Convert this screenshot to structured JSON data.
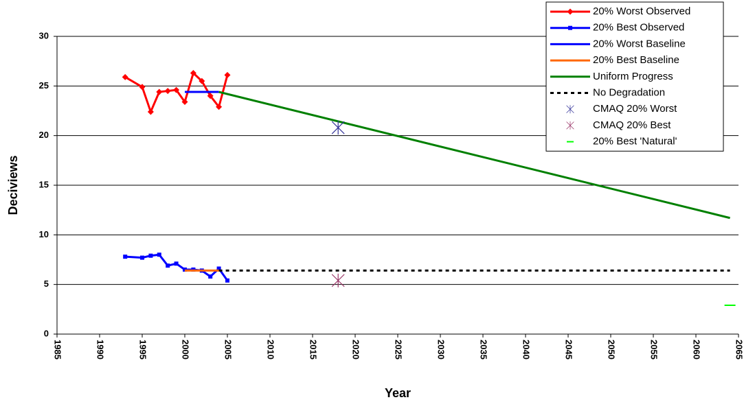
{
  "chart_data": {
    "type": "line",
    "x_label": "Year",
    "y_label": "Deciviews",
    "xlim": [
      1985,
      2065
    ],
    "xticks": [
      1985,
      1990,
      1995,
      2000,
      2005,
      2010,
      2015,
      2020,
      2025,
      2030,
      2035,
      2040,
      2045,
      2050,
      2055,
      2060,
      2065
    ],
    "ylim": [
      0,
      30
    ],
    "yticks": [
      0,
      5,
      10,
      15,
      20,
      25,
      30
    ],
    "grid": true,
    "legend": "top-right",
    "series": [
      {
        "name": "20% Worst Observed",
        "color": "#ff0000",
        "line": "solid",
        "marker": "diamond",
        "x": [
          1993,
          1995,
          1996,
          1997,
          1998,
          1999,
          2000,
          2001,
          2002,
          2003,
          2004,
          2005
        ],
        "values": [
          25.9,
          24.9,
          22.4,
          24.4,
          24.5,
          24.6,
          23.4,
          26.3,
          25.5,
          24.0,
          22.9,
          26.1
        ]
      },
      {
        "name": "20% Best Observed",
        "color": "#0000ff",
        "line": "solid",
        "marker": "square",
        "x": [
          1993,
          1995,
          1996,
          1997,
          1998,
          1999,
          2000,
          2001,
          2002,
          2003,
          2004,
          2005
        ],
        "values": [
          7.8,
          7.7,
          7.9,
          8.0,
          6.9,
          7.1,
          6.5,
          6.5,
          6.4,
          5.8,
          6.6,
          5.4
        ]
      },
      {
        "name": "20% Worst Baseline",
        "color": "#0000ff",
        "line": "solid",
        "marker": "none",
        "x": [
          2000,
          2004
        ],
        "values": [
          24.4,
          24.4
        ]
      },
      {
        "name": "20% Best Baseline",
        "color": "#ff6600",
        "line": "solid",
        "marker": "none",
        "x": [
          2000,
          2004
        ],
        "values": [
          6.4,
          6.4
        ]
      },
      {
        "name": "Uniform Progress",
        "color": "#008000",
        "line": "solid",
        "marker": "none",
        "x": [
          2004,
          2064
        ],
        "values": [
          24.4,
          11.7
        ]
      },
      {
        "name": "No Degradation",
        "color": "#000000",
        "line": "dashed",
        "marker": "none",
        "x": [
          2004,
          2064
        ],
        "values": [
          6.4,
          6.4
        ]
      },
      {
        "name": "CMAQ 20% Worst",
        "color": "#333399",
        "line": "none",
        "marker": "star",
        "x": [
          2018
        ],
        "values": [
          20.8
        ]
      },
      {
        "name": "CMAQ 20% Best",
        "color": "#993366",
        "line": "none",
        "marker": "star",
        "x": [
          2018
        ],
        "values": [
          5.4
        ]
      },
      {
        "name": "20% Best 'Natural'",
        "color": "#00ff00",
        "line": "none",
        "marker": "dash",
        "x": [
          2064
        ],
        "values": [
          2.9
        ]
      }
    ]
  }
}
